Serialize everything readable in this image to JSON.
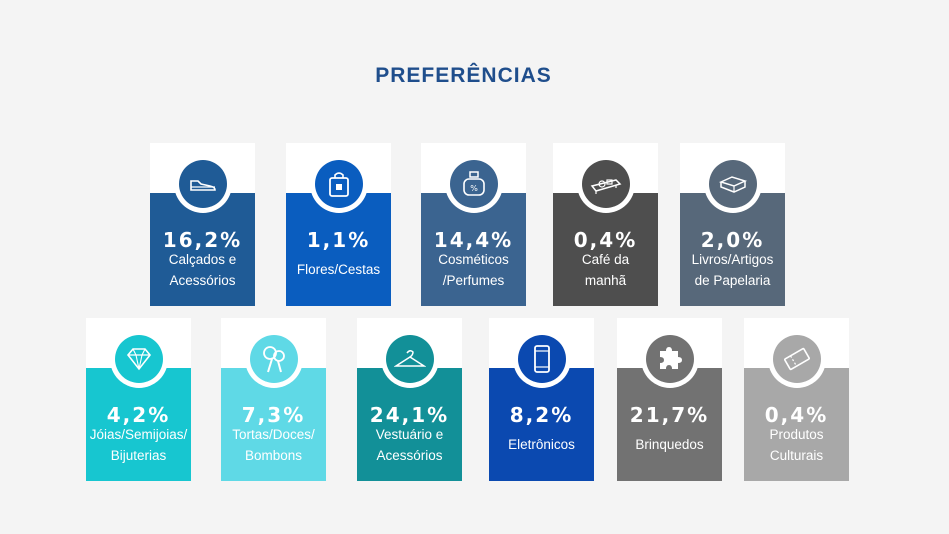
{
  "title": "PREFERÊNCIAS",
  "cards": [
    {
      "value": "16,2%",
      "label_line1": "Calçados e",
      "label_line2": "Acessórios",
      "icon": "shoe-icon",
      "color": "#1f5b96"
    },
    {
      "value": "1,1%",
      "label_line1": "Flores/Cestas",
      "label_line2": "",
      "icon": "shopping-bag-icon",
      "color": "#0a5dbf"
    },
    {
      "value": "14,4%",
      "label_line1": "Cosméticos",
      "label_line2": "/Perfumes",
      "icon": "perfume-icon",
      "color": "#3b6490"
    },
    {
      "value": "0,4%",
      "label_line1": "Café da",
      "label_line2": "manhã",
      "icon": "breakfast-tray-icon",
      "color": "#4e4e4e"
    },
    {
      "value": "2,0%",
      "label_line1": "Livros/Artigos",
      "label_line2": "de Papelaria",
      "icon": "books-icon",
      "color": "#57687a"
    },
    {
      "value": "4,2%",
      "label_line1": "Jóias/Semijoias/",
      "label_line2": "Bijuterias",
      "icon": "diamond-icon",
      "color": "#17c6d0"
    },
    {
      "value": "7,3%",
      "label_line1": "Tortas/Doces/",
      "label_line2": "Bombons",
      "icon": "candy-icon",
      "color": "#5fd9e6"
    },
    {
      "value": "24,1%",
      "label_line1": "Vestuário e",
      "label_line2": "Acessórios",
      "icon": "hanger-icon",
      "color": "#129098"
    },
    {
      "value": "8,2%",
      "label_line1": "Eletrônicos",
      "label_line2": "",
      "icon": "smartphone-icon",
      "color": "#0b49b0"
    },
    {
      "value": "21,7%",
      "label_line1": "Brinquedos",
      "label_line2": "",
      "icon": "puzzle-icon",
      "color": "#727272"
    },
    {
      "value": "0,4%",
      "label_line1": "Produtos",
      "label_line2": "Culturais",
      "icon": "ticket-icon",
      "color": "#a8a8a8"
    }
  ]
}
